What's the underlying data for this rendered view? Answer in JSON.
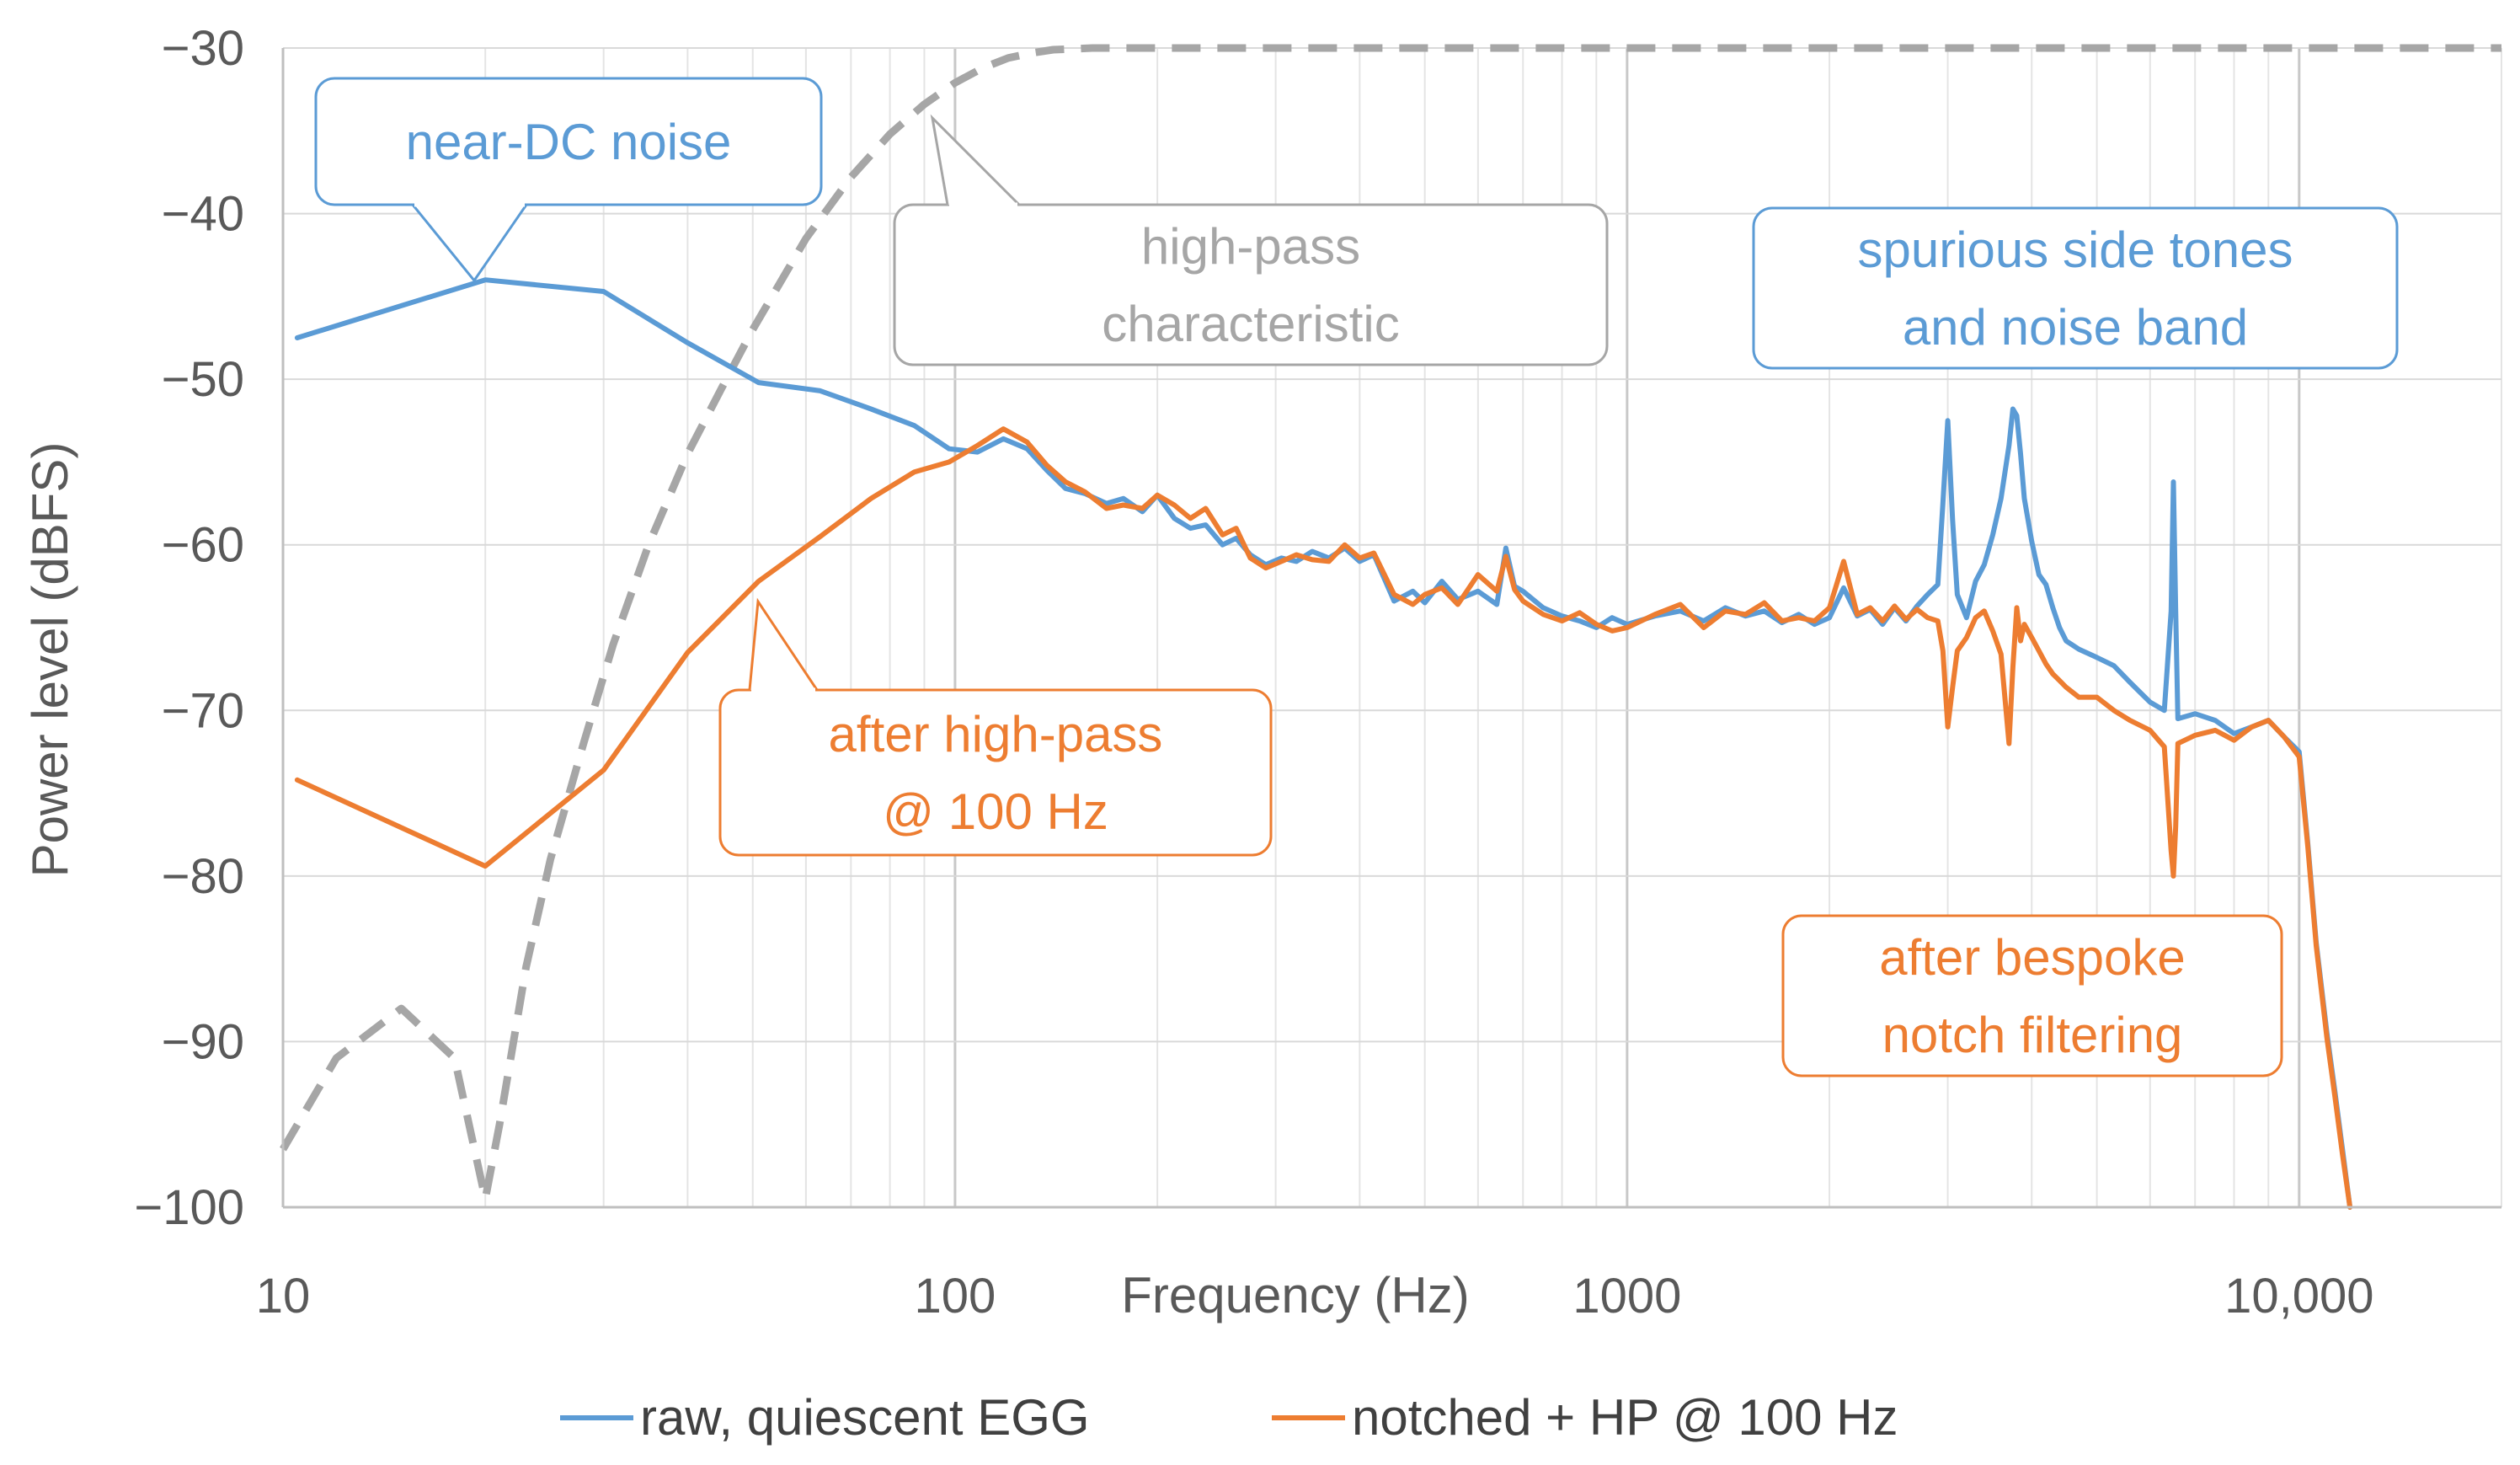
{
  "chart_data": {
    "type": "line",
    "title": "",
    "xlabel": "Frequency (Hz)",
    "ylabel": "Power level (dBFS)",
    "x_scale": "log",
    "xlim": [
      10,
      20000
    ],
    "ylim": [
      -100,
      -30
    ],
    "x_ticks": [
      {
        "value": 10,
        "label": "10"
      },
      {
        "value": 100,
        "label": "100"
      },
      {
        "value": 1000,
        "label": "1000"
      },
      {
        "value": 10000,
        "label": "10,000"
      }
    ],
    "y_ticks": [
      {
        "value": -30,
        "label": "−30"
      },
      {
        "value": -40,
        "label": "−40"
      },
      {
        "value": -50,
        "label": "−50"
      },
      {
        "value": -60,
        "label": "−60"
      },
      {
        "value": -70,
        "label": "−70"
      },
      {
        "value": -80,
        "label": "−80"
      },
      {
        "value": -90,
        "label": "−90"
      },
      {
        "value": -100,
        "label": "−100"
      }
    ],
    "grid": true,
    "legend_position": "bottom",
    "series": [
      {
        "name": "raw, quiescent EGG",
        "color": "#5B9BD5",
        "style": "solid",
        "x": [
          10.5,
          20,
          30,
          40,
          51,
          63,
          75,
          87,
          98,
          108,
          118,
          128,
          137,
          146,
          156,
          168,
          178,
          190,
          200,
          212,
          224,
          236,
          250,
          262,
          275,
          290,
          306,
          322,
          340,
          360,
          380,
          400,
          420,
          450,
          480,
          500,
          530,
          560,
          600,
          640,
          660,
          680,
          700,
          750,
          800,
          850,
          900,
          950,
          1000,
          1100,
          1200,
          1300,
          1400,
          1500,
          1600,
          1700,
          1800,
          1900,
          2000,
          2100,
          2200,
          2300,
          2400,
          2500,
          2600,
          2700,
          2800,
          2900,
          2950,
          3000,
          3050,
          3100,
          3200,
          3300,
          3400,
          3500,
          3600,
          3700,
          3750,
          3800,
          3850,
          3900,
          4000,
          4100,
          4200,
          4300,
          4400,
          4500,
          4700,
          5000,
          5300,
          5600,
          6000,
          6300,
          6450,
          6500,
          6550,
          6600,
          7000,
          7500,
          8000,
          8500,
          9000,
          9500,
          10000,
          10300,
          10600,
          11000,
          11300,
          11600,
          11900
        ],
        "y": [
          -47.5,
          -44,
          -44.7,
          -47.8,
          -50.2,
          -50.7,
          -51.8,
          -52.8,
          -54.2,
          -54.4,
          -53.6,
          -54.2,
          -55.5,
          -56.6,
          -56.9,
          -57.5,
          -57.2,
          -58.0,
          -57.0,
          -58.4,
          -59.0,
          -58.8,
          -60.0,
          -59.6,
          -60.6,
          -61.2,
          -60.8,
          -61.0,
          -60.4,
          -60.8,
          -60.2,
          -61.0,
          -60.6,
          -63.4,
          -62.8,
          -63.5,
          -62.2,
          -63.3,
          -62.8,
          -63.6,
          -60.2,
          -62.5,
          -62.8,
          -63.8,
          -64.3,
          -64.6,
          -65.0,
          -64.4,
          -64.8,
          -64.3,
          -64.0,
          -64.6,
          -63.8,
          -64.3,
          -64.0,
          -64.7,
          -64.2,
          -64.8,
          -64.4,
          -62.6,
          -64.3,
          -63.9,
          -64.8,
          -63.8,
          -64.6,
          -63.7,
          -63.0,
          -62.4,
          -57.5,
          -52.5,
          -58.5,
          -63.0,
          -64.4,
          -62.2,
          -61.2,
          -59.4,
          -57.2,
          -54.0,
          -51.8,
          -52.2,
          -54.5,
          -57.2,
          -59.8,
          -61.8,
          -62.4,
          -63.8,
          -65.0,
          -65.8,
          -66.3,
          -66.8,
          -67.3,
          -68.3,
          -69.5,
          -70.0,
          -64.0,
          -56.2,
          -64.0,
          -70.5,
          -70.2,
          -70.6,
          -71.4,
          -71.0,
          -70.6,
          -71.6,
          -72.5,
          -78.0,
          -84.0,
          -89.5,
          -93.0,
          -96.5,
          -100.0
        ]
      },
      {
        "name": "notched + HP @ 100 Hz",
        "color": "#ED7D31",
        "style": "solid",
        "x": [
          10.5,
          20,
          30,
          40,
          51,
          63,
          75,
          87,
          98,
          108,
          118,
          128,
          137,
          146,
          156,
          168,
          178,
          190,
          200,
          212,
          224,
          236,
          250,
          262,
          275,
          290,
          306,
          322,
          340,
          360,
          380,
          400,
          420,
          450,
          480,
          500,
          530,
          560,
          600,
          640,
          660,
          680,
          700,
          750,
          800,
          850,
          900,
          950,
          1000,
          1100,
          1200,
          1300,
          1400,
          1500,
          1600,
          1700,
          1800,
          1900,
          2000,
          2100,
          2200,
          2300,
          2400,
          2500,
          2600,
          2700,
          2800,
          2900,
          2950,
          3000,
          3050,
          3100,
          3200,
          3300,
          3400,
          3500,
          3600,
          3700,
          3750,
          3800,
          3850,
          3900,
          4000,
          4100,
          4200,
          4300,
          4400,
          4500,
          4700,
          5000,
          5300,
          5600,
          6000,
          6300,
          6450,
          6500,
          6550,
          6600,
          7000,
          7500,
          8000,
          8500,
          9000,
          9500,
          10000,
          10300,
          10600,
          11000,
          11300,
          11600,
          11900
        ],
        "y": [
          -74.2,
          -79.4,
          -73.6,
          -66.5,
          -62.2,
          -59.5,
          -57.2,
          -55.6,
          -55.0,
          -54.0,
          -53.0,
          -53.8,
          -55.2,
          -56.2,
          -56.8,
          -57.8,
          -57.6,
          -57.8,
          -57.0,
          -57.6,
          -58.4,
          -57.8,
          -59.4,
          -59.0,
          -60.8,
          -61.4,
          -61.0,
          -60.6,
          -60.9,
          -61.0,
          -60.0,
          -60.8,
          -60.5,
          -63.0,
          -63.6,
          -63.0,
          -62.6,
          -63.6,
          -61.8,
          -62.8,
          -60.7,
          -62.7,
          -63.4,
          -64.2,
          -64.6,
          -64.1,
          -64.8,
          -65.2,
          -65.0,
          -64.2,
          -63.6,
          -65.0,
          -64.0,
          -64.2,
          -63.5,
          -64.6,
          -64.4,
          -64.6,
          -63.8,
          -61.0,
          -64.2,
          -63.8,
          -64.6,
          -63.7,
          -64.5,
          -63.9,
          -64.4,
          -64.6,
          -66.4,
          -71.0,
          -68.6,
          -66.4,
          -65.6,
          -64.4,
          -64.0,
          -65.2,
          -66.6,
          -72.0,
          -67.4,
          -63.8,
          -65.8,
          -64.8,
          -65.6,
          -66.4,
          -67.2,
          -67.8,
          -68.2,
          -68.6,
          -69.2,
          -69.2,
          -70.0,
          -70.6,
          -71.2,
          -72.2,
          -78.5,
          -80.0,
          -77.0,
          -72.0,
          -71.5,
          -71.2,
          -71.8,
          -71.0,
          -70.6,
          -71.6,
          -72.8,
          -78.2,
          -84.2,
          -89.8,
          -93.3,
          -96.8,
          -100.0
        ]
      },
      {
        "name": "high-pass characteristic",
        "color": "#A6A6A6",
        "style": "dashed",
        "x": [
          10,
          12,
          15,
          18,
          20,
          21,
          23,
          25,
          28,
          31,
          35,
          40,
          45,
          50,
          60,
          70,
          80,
          90,
          100,
          110,
          120,
          130,
          140,
          160,
          200,
          300,
          500,
          1000,
          2000,
          5000,
          10000,
          20000
        ],
        "y": [
          -96.5,
          -91,
          -88,
          -91,
          -99.5,
          -95,
          -85.5,
          -79,
          -72,
          -66,
          -60,
          -54.5,
          -50.5,
          -47,
          -41.5,
          -37.8,
          -35.2,
          -33.4,
          -32.1,
          -31.2,
          -30.6,
          -30.3,
          -30.1,
          -30.0,
          -30,
          -30,
          -30,
          -30,
          -30,
          -30,
          -30,
          -30
        ]
      }
    ],
    "annotations": [
      {
        "lines": [
          "near-DC noise"
        ],
        "color": "#5B9BD5",
        "points_to": {
          "x": 19,
          "y": -44
        }
      },
      {
        "lines": [
          "high-pass",
          "characteristic"
        ],
        "color": "#A6A6A6",
        "points_to": {
          "x": 90,
          "y": -34
        }
      },
      {
        "lines": [
          "spurious side tones",
          "and noise band"
        ],
        "color": "#5B9BD5",
        "points_to": null
      },
      {
        "lines": [
          "after high-pass",
          "@ 100 Hz"
        ],
        "color": "#ED7D31",
        "points_to": {
          "x": 50,
          "y": -63
        }
      },
      {
        "lines": [
          "after bespoke",
          "notch filtering"
        ],
        "color": "#ED7D31",
        "points_to": null
      }
    ]
  }
}
